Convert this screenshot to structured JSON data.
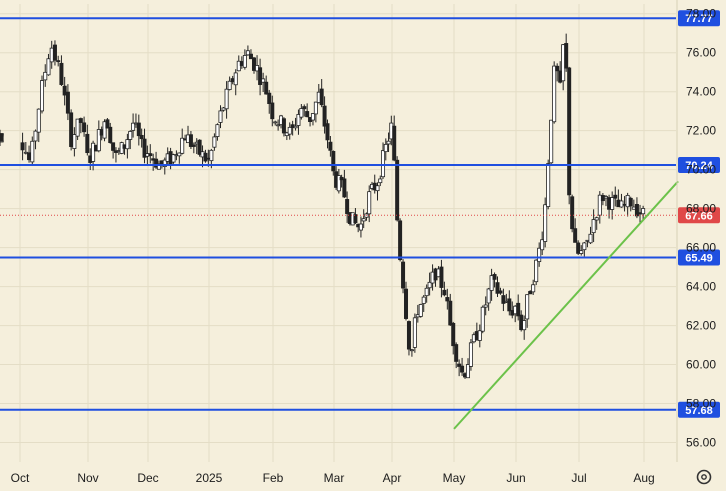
{
  "chart_data": {
    "type": "candlestick",
    "colors": {
      "background": "#f5efdc",
      "grid": "#e4ddc6",
      "up_candle": "#ffffff",
      "down_candle": "#222222",
      "wick": "#222222",
      "level_line": "#1f4fe0",
      "trend_line": "#6cc24a",
      "last_price": "#e04848"
    },
    "y_axis": {
      "range": [
        55.0,
        78.5
      ],
      "ticks": [
        "56.00",
        "58.00",
        "60.00",
        "62.00",
        "64.00",
        "66.00",
        "68.00",
        "70.00",
        "72.00",
        "74.00",
        "76.00",
        "78.00"
      ]
    },
    "x_axis": {
      "labels": [
        "Oct",
        "Nov",
        "Dec",
        "2025",
        "Feb",
        "Mar",
        "Apr",
        "May",
        "Jun",
        "Jul",
        "Aug"
      ]
    },
    "horizontal_levels": [
      {
        "value": 77.77,
        "label": "77.77"
      },
      {
        "value": 70.24,
        "label": "70.24"
      },
      {
        "value": 65.49,
        "label": "65.49"
      },
      {
        "value": 57.68,
        "label": "57.68"
      }
    ],
    "last_price": {
      "value": 67.66,
      "label": "67.66"
    },
    "trend_line": {
      "from": {
        "month_index": 7.0,
        "value": 56.7
      },
      "to": {
        "month_index": 10.55,
        "value": 69.4
      }
    },
    "price_path": [
      {
        "m": 0.0,
        "v": 71.8
      },
      {
        "m": 0.15,
        "v": 70.3
      },
      {
        "m": 0.3,
        "v": 73.8
      },
      {
        "m": 0.45,
        "v": 76.5
      },
      {
        "m": 0.6,
        "v": 74.8
      },
      {
        "m": 0.75,
        "v": 71.6
      },
      {
        "m": 0.9,
        "v": 72.5
      },
      {
        "m": 1.0,
        "v": 70.4
      },
      {
        "m": 1.15,
        "v": 71.5
      },
      {
        "m": 1.3,
        "v": 72.8
      },
      {
        "m": 1.45,
        "v": 70.6
      },
      {
        "m": 1.6,
        "v": 71.2
      },
      {
        "m": 1.75,
        "v": 72.4
      },
      {
        "m": 1.9,
        "v": 71.1
      },
      {
        "m": 2.0,
        "v": 70.9
      },
      {
        "m": 2.2,
        "v": 70.2
      },
      {
        "m": 2.4,
        "v": 70.6
      },
      {
        "m": 2.6,
        "v": 71.8
      },
      {
        "m": 2.8,
        "v": 71.0
      },
      {
        "m": 3.0,
        "v": 70.4
      },
      {
        "m": 3.15,
        "v": 72.5
      },
      {
        "m": 3.3,
        "v": 74.0
      },
      {
        "m": 3.45,
        "v": 75.4
      },
      {
        "m": 3.6,
        "v": 76.0
      },
      {
        "m": 3.75,
        "v": 75.2
      },
      {
        "m": 3.9,
        "v": 74.0
      },
      {
        "m": 4.0,
        "v": 72.8
      },
      {
        "m": 4.15,
        "v": 72.3
      },
      {
        "m": 4.3,
        "v": 71.8
      },
      {
        "m": 4.45,
        "v": 73.2
      },
      {
        "m": 4.6,
        "v": 72.6
      },
      {
        "m": 4.75,
        "v": 73.8
      },
      {
        "m": 4.9,
        "v": 71.5
      },
      {
        "m": 5.0,
        "v": 69.6
      },
      {
        "m": 5.15,
        "v": 69.0
      },
      {
        "m": 5.3,
        "v": 67.4
      },
      {
        "m": 5.45,
        "v": 67.0
      },
      {
        "m": 5.6,
        "v": 68.6
      },
      {
        "m": 5.75,
        "v": 69.4
      },
      {
        "m": 5.9,
        "v": 71.2
      },
      {
        "m": 6.0,
        "v": 72.3
      },
      {
        "m": 6.1,
        "v": 66.5
      },
      {
        "m": 6.2,
        "v": 63.6
      },
      {
        "m": 6.3,
        "v": 60.2
      },
      {
        "m": 6.4,
        "v": 62.8
      },
      {
        "m": 6.55,
        "v": 63.5
      },
      {
        "m": 6.7,
        "v": 64.8
      },
      {
        "m": 6.85,
        "v": 63.8
      },
      {
        "m": 6.95,
        "v": 61.8
      },
      {
        "m": 7.05,
        "v": 60.4
      },
      {
        "m": 7.15,
        "v": 59.4
      },
      {
        "m": 7.3,
        "v": 61.0
      },
      {
        "m": 7.45,
        "v": 62.4
      },
      {
        "m": 7.6,
        "v": 64.2
      },
      {
        "m": 7.75,
        "v": 63.6
      },
      {
        "m": 7.9,
        "v": 62.7
      },
      {
        "m": 8.0,
        "v": 63.0
      },
      {
        "m": 8.1,
        "v": 61.8
      },
      {
        "m": 8.2,
        "v": 63.6
      },
      {
        "m": 8.35,
        "v": 65.5
      },
      {
        "m": 8.45,
        "v": 67.5
      },
      {
        "m": 8.55,
        "v": 72.5
      },
      {
        "m": 8.62,
        "v": 75.5
      },
      {
        "m": 8.7,
        "v": 74.0
      },
      {
        "m": 8.78,
        "v": 77.7
      },
      {
        "m": 8.83,
        "v": 69.5
      },
      {
        "m": 8.92,
        "v": 66.0
      },
      {
        "m": 9.0,
        "v": 65.6
      },
      {
        "m": 9.1,
        "v": 65.9
      },
      {
        "m": 9.2,
        "v": 67.2
      },
      {
        "m": 9.35,
        "v": 68.7
      },
      {
        "m": 9.5,
        "v": 68.3
      },
      {
        "m": 9.65,
        "v": 68.0
      },
      {
        "m": 9.8,
        "v": 68.4
      },
      {
        "m": 9.95,
        "v": 67.8
      },
      {
        "m": 10.0,
        "v": 67.66
      }
    ]
  }
}
